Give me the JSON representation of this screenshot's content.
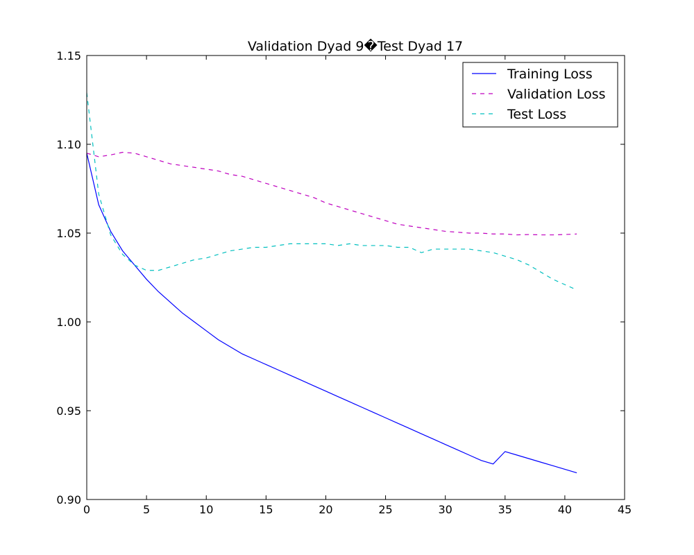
{
  "chart_data": {
    "type": "line",
    "title": "Validation Dyad 9�Test Dyad 17",
    "xlabel": "",
    "ylabel": "",
    "xlim": [
      0,
      45
    ],
    "ylim": [
      0.9,
      1.15
    ],
    "xticks": [
      0,
      5,
      10,
      15,
      20,
      25,
      30,
      35,
      40,
      45
    ],
    "xtick_labels": [
      "0",
      "5",
      "10",
      "15",
      "20",
      "25",
      "30",
      "35",
      "40",
      "45"
    ],
    "yticks": [
      0.9,
      0.95,
      1.0,
      1.05,
      1.1,
      1.15
    ],
    "ytick_labels": [
      "0.90",
      "0.95",
      "1.00",
      "1.05",
      "1.10",
      "1.15"
    ],
    "grid": false,
    "legend": "top-right",
    "x": [
      0,
      1,
      2,
      3,
      4,
      5,
      6,
      7,
      8,
      9,
      10,
      11,
      12,
      13,
      14,
      15,
      16,
      17,
      18,
      19,
      20,
      21,
      22,
      23,
      24,
      25,
      26,
      27,
      28,
      29,
      30,
      31,
      32,
      33,
      34,
      35,
      36,
      37,
      38,
      39,
      40,
      41
    ],
    "series": [
      {
        "name": "Training Loss",
        "color": "#0000ff",
        "dash": "solid",
        "values": [
          1.095,
          1.066,
          1.051,
          1.04,
          1.032,
          1.024,
          1.017,
          1.011,
          1.005,
          1.0,
          0.995,
          0.99,
          0.986,
          0.982,
          0.979,
          0.976,
          0.973,
          0.97,
          0.967,
          0.964,
          0.961,
          0.958,
          0.955,
          0.952,
          0.949,
          0.946,
          0.943,
          0.94,
          0.937,
          0.934,
          0.931,
          0.928,
          0.925,
          0.922,
          0.92,
          0.927,
          0.925,
          0.923,
          0.921,
          0.919,
          0.917,
          0.915
        ]
      },
      {
        "name": "Validation Loss",
        "color": "#bf00bf",
        "dash": "dashed",
        "values": [
          1.095,
          1.093,
          1.094,
          1.0955,
          1.095,
          1.093,
          1.091,
          1.089,
          1.088,
          1.087,
          1.086,
          1.085,
          1.083,
          1.082,
          1.08,
          1.078,
          1.076,
          1.074,
          1.072,
          1.07,
          1.067,
          1.065,
          1.063,
          1.061,
          1.059,
          1.057,
          1.055,
          1.054,
          1.053,
          1.052,
          1.051,
          1.0505,
          1.05,
          1.05,
          1.0495,
          1.0495,
          1.049,
          1.0492,
          1.049,
          1.049,
          1.0492,
          1.0495
        ]
      },
      {
        "name": "Test Loss",
        "color": "#00bfbf",
        "dash": "dashed",
        "values": [
          1.129,
          1.072,
          1.049,
          1.038,
          1.032,
          1.029,
          1.029,
          1.031,
          1.033,
          1.035,
          1.036,
          1.038,
          1.04,
          1.041,
          1.042,
          1.042,
          1.043,
          1.044,
          1.044,
          1.044,
          1.044,
          1.043,
          1.044,
          1.043,
          1.043,
          1.043,
          1.042,
          1.042,
          1.039,
          1.041,
          1.041,
          1.041,
          1.041,
          1.04,
          1.039,
          1.037,
          1.035,
          1.032,
          1.028,
          1.024,
          1.021,
          1.018
        ]
      }
    ]
  }
}
